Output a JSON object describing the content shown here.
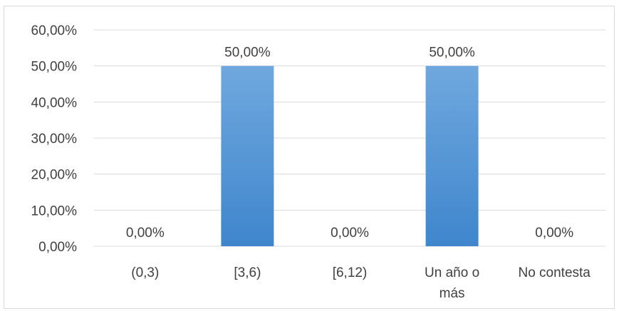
{
  "chart_data": {
    "type": "bar",
    "categories": [
      [
        "(0,3)"
      ],
      [
        "[3,6)"
      ],
      [
        "[6,12)"
      ],
      [
        "Un año o",
        "más"
      ],
      [
        "No contesta"
      ]
    ],
    "values": [
      0.0,
      50.0,
      0.0,
      50.0,
      0.0
    ],
    "data_labels": [
      "0,00%",
      "50,00%",
      "0,00%",
      "50,00%",
      "0,00%"
    ],
    "y_ticks": [
      "0,00%",
      "10,00%",
      "20,00%",
      "30,00%",
      "40,00%",
      "50,00%",
      "60,00%"
    ],
    "ylim": [
      0,
      60
    ],
    "grid": true,
    "legend": "none",
    "colors": {
      "bar_top": "#6fa8de",
      "bar_bottom": "#3f86cd",
      "grid": "#d9d9d9",
      "text": "#404040"
    }
  }
}
